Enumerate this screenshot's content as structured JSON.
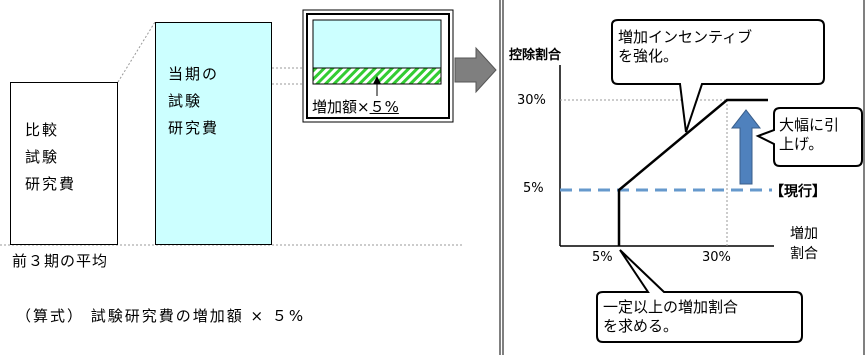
{
  "left_diagram": {
    "comparison_box": {
      "lines": [
        "比較",
        "試験",
        "研究費"
      ]
    },
    "current_box": {
      "lines": [
        "当期の",
        "試験",
        "研究費"
      ]
    },
    "average_label": "前３期の平均",
    "inset_label_prefix": "増加額×",
    "inset_label_value": "５%",
    "formula": "（算式）  試験研究費の増加額 × ５%"
  },
  "right_chart": {
    "ylabel": "控除割合",
    "xlabel_line1": "増加",
    "xlabel_line2": "割合",
    "y_ticks": [
      "30%",
      "5%"
    ],
    "x_ticks": [
      "5%",
      "30%"
    ],
    "current_label": "【現行】",
    "callout_top": [
      "増加インセンティブ",
      "を強化。"
    ],
    "callout_right": [
      "大幅に引",
      "上げ。"
    ],
    "callout_bottom": [
      "一定以上の増加割合",
      "を求める。"
    ]
  },
  "colors": {
    "light_blue": "#ccffff",
    "stripe_green": "#33cc33",
    "dashed_line": "#6699cc",
    "arrow_blue": "#4f81bd",
    "grey_arrow": "#7f7f7f"
  }
}
